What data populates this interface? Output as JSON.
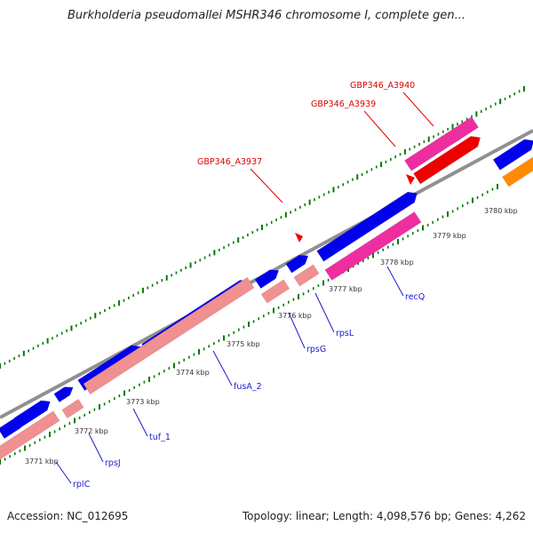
{
  "title": "Burkholderia pseudomallei MSHR346 chromosome I, complete gen...",
  "footer": {
    "accession": "Accession: NC_012695",
    "stats": "Topology: linear; Length: 4,098,576 bp; Genes: 4,262"
  },
  "colors": {
    "backbone": "#909090",
    "tick": "#007a00",
    "cds_forward": "#0000ee",
    "gene_reverse": "#f09090",
    "gene_pink": "#ee2ea0",
    "misc_red": "#ee0000",
    "orange": "#ff8c00",
    "label_blue": "#1a1acc",
    "label_red": "#dd0000"
  },
  "axis": {
    "kbp_labels": [
      "3771 kbp",
      "3772 kbp",
      "3773 kbp",
      "3774 kbp",
      "3775 kbp",
      "3776 kbp",
      "3777 kbp",
      "3778 kbp",
      "3779 kbp",
      "3780 kbp"
    ]
  },
  "genes": [
    {
      "name": "rplC",
      "color": "label_blue"
    },
    {
      "name": "rpsJ",
      "color": "label_blue"
    },
    {
      "name": "tuf_1",
      "color": "label_blue"
    },
    {
      "name": "fusA_2",
      "color": "label_blue"
    },
    {
      "name": "rpsG",
      "color": "label_blue"
    },
    {
      "name": "rpsL",
      "color": "label_blue"
    },
    {
      "name": "recQ",
      "color": "label_blue"
    },
    {
      "name": "GBP346_A3937",
      "color": "label_red"
    },
    {
      "name": "GBP346_A3939",
      "color": "label_red"
    },
    {
      "name": "GBP346_A3940",
      "color": "label_red"
    }
  ]
}
